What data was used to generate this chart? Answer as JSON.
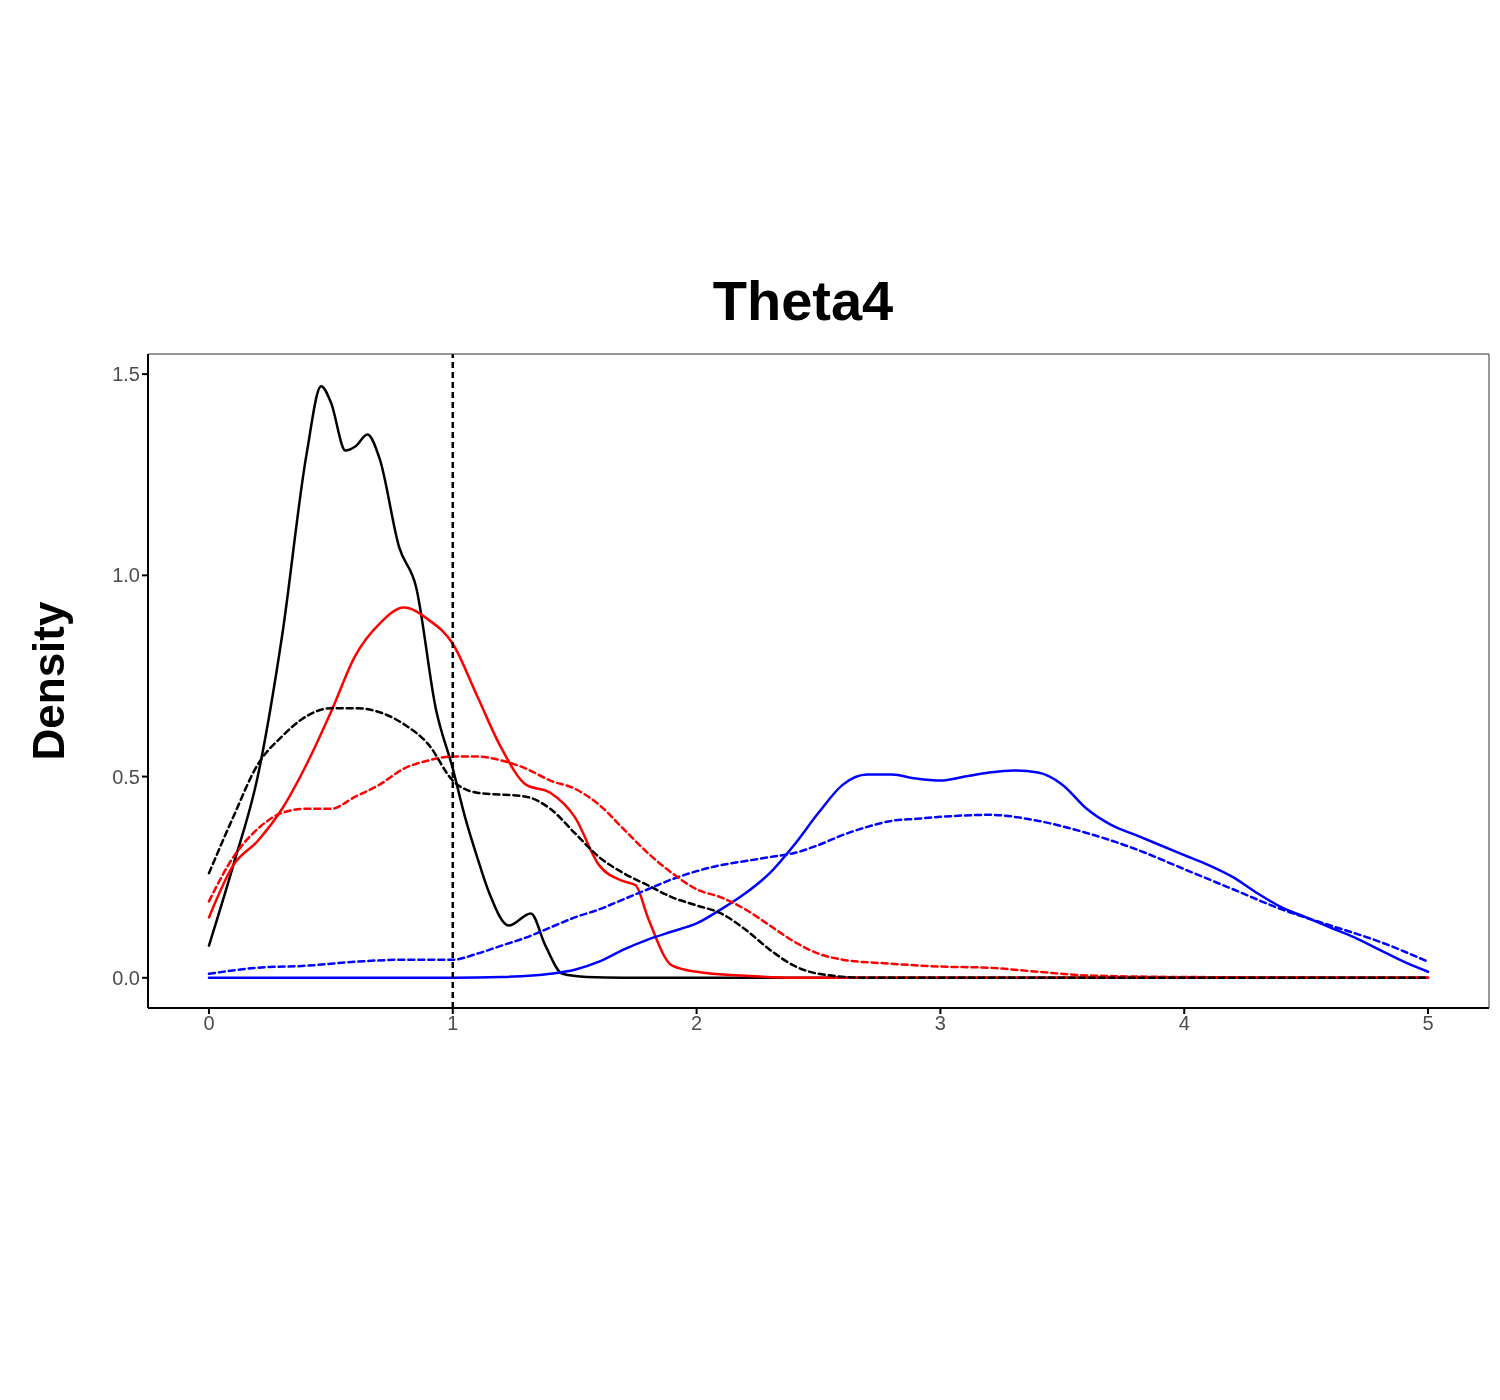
{
  "chart_data": {
    "type": "line",
    "title": "Theta4",
    "ylabel": "Density",
    "xlim": [
      -0.25,
      5.25
    ],
    "ylim": [
      -0.075,
      1.55
    ],
    "xticks": [
      0,
      1,
      2,
      3,
      4,
      5
    ],
    "yticks": [
      {
        "value": 0,
        "label": "0.0"
      },
      {
        "value": 0.5,
        "label": "0.5"
      },
      {
        "value": 1,
        "label": "1.0"
      },
      {
        "value": 1.5,
        "label": "1.5"
      }
    ],
    "marker": "none",
    "ref_lines": [
      {
        "axis": "x",
        "value": 1,
        "label": null,
        "color": "#000000",
        "line_style": "dashed"
      }
    ],
    "series": [
      {
        "color": "#000000",
        "line_style": "solid",
        "x": [
          0,
          0.1,
          0.2,
          0.3,
          0.4,
          0.46,
          0.5,
          0.56,
          0.6,
          0.65,
          0.7,
          0.78,
          0.85,
          0.93,
          1.0,
          1.05,
          1.1,
          1.15,
          1.23,
          1.32,
          1.38,
          1.45,
          1.55,
          1.7,
          2,
          3,
          4,
          5
        ],
        "values": [
          0.08,
          0.28,
          0.5,
          0.85,
          1.3,
          1.47,
          1.43,
          1.31,
          1.32,
          1.35,
          1.29,
          1.07,
          0.97,
          0.67,
          0.52,
          0.4,
          0.3,
          0.21,
          0.13,
          0.16,
          0.08,
          0.01,
          0.002,
          0,
          0,
          0,
          0,
          0
        ]
      },
      {
        "color": "#000000",
        "line_style": "dashed",
        "x": [
          0,
          0.1,
          0.2,
          0.3,
          0.4,
          0.5,
          0.6,
          0.7,
          0.8,
          0.9,
          1.0,
          1.1,
          1.3,
          1.4,
          1.5,
          1.6,
          1.7,
          1.8,
          1.9,
          2.0,
          2.1,
          2.2,
          2.3,
          2.4,
          2.5,
          2.7,
          5
        ],
        "values": [
          0.26,
          0.4,
          0.53,
          0.6,
          0.65,
          0.67,
          0.67,
          0.66,
          0.63,
          0.58,
          0.49,
          0.46,
          0.45,
          0.42,
          0.36,
          0.3,
          0.26,
          0.23,
          0.2,
          0.18,
          0.16,
          0.12,
          0.07,
          0.03,
          0.01,
          0,
          0
        ]
      },
      {
        "color": "#ff0000",
        "line_style": "solid",
        "x": [
          0,
          0.1,
          0.2,
          0.3,
          0.4,
          0.5,
          0.6,
          0.7,
          0.8,
          0.9,
          1.0,
          1.1,
          1.2,
          1.3,
          1.4,
          1.5,
          1.6,
          1.7,
          1.75,
          1.8,
          1.9,
          2.0,
          2.2,
          2.4,
          5
        ],
        "values": [
          0.15,
          0.28,
          0.34,
          0.42,
          0.53,
          0.66,
          0.8,
          0.88,
          0.92,
          0.89,
          0.83,
          0.7,
          0.57,
          0.48,
          0.46,
          0.4,
          0.28,
          0.24,
          0.23,
          0.15,
          0.03,
          0.015,
          0.005,
          0,
          0
        ]
      },
      {
        "color": "#ff0000",
        "line_style": "dashed",
        "x": [
          0,
          0.1,
          0.2,
          0.3,
          0.4,
          0.5,
          0.6,
          0.7,
          0.8,
          0.9,
          1.0,
          1.1,
          1.2,
          1.3,
          1.4,
          1.5,
          1.6,
          1.7,
          1.8,
          1.9,
          2.0,
          2.1,
          2.2,
          2.3,
          2.4,
          2.5,
          2.6,
          2.8,
          3.0,
          3.2,
          3.4,
          3.6,
          4,
          5
        ],
        "values": [
          0.19,
          0.3,
          0.37,
          0.41,
          0.42,
          0.42,
          0.45,
          0.48,
          0.52,
          0.54,
          0.55,
          0.55,
          0.54,
          0.52,
          0.49,
          0.47,
          0.43,
          0.37,
          0.31,
          0.26,
          0.22,
          0.2,
          0.17,
          0.13,
          0.09,
          0.06,
          0.045,
          0.035,
          0.028,
          0.025,
          0.015,
          0.006,
          0.002,
          0
        ]
      },
      {
        "color": "#0000ff",
        "line_style": "solid",
        "x": [
          0,
          1,
          1.2,
          1.4,
          1.5,
          1.6,
          1.7,
          1.8,
          1.9,
          2.0,
          2.1,
          2.2,
          2.3,
          2.4,
          2.5,
          2.6,
          2.7,
          2.8,
          2.9,
          3.0,
          3.1,
          3.2,
          3.3,
          3.4,
          3.5,
          3.6,
          3.7,
          3.8,
          3.9,
          4.0,
          4.1,
          4.2,
          4.3,
          4.4,
          4.5,
          4.6,
          4.7,
          4.8,
          4.9,
          5.0
        ],
        "values": [
          0,
          0,
          0.002,
          0.01,
          0.02,
          0.04,
          0.07,
          0.095,
          0.115,
          0.135,
          0.17,
          0.21,
          0.26,
          0.33,
          0.41,
          0.48,
          0.505,
          0.505,
          0.495,
          0.49,
          0.5,
          0.51,
          0.515,
          0.51,
          0.48,
          0.42,
          0.38,
          0.355,
          0.33,
          0.305,
          0.28,
          0.25,
          0.21,
          0.175,
          0.15,
          0.125,
          0.1,
          0.07,
          0.04,
          0.015
        ]
      },
      {
        "color": "#0000ff",
        "line_style": "dashed",
        "x": [
          0,
          0.2,
          0.4,
          0.6,
          0.8,
          1.0,
          1.1,
          1.2,
          1.3,
          1.4,
          1.5,
          1.6,
          1.7,
          1.8,
          1.9,
          2.0,
          2.1,
          2.2,
          2.3,
          2.4,
          2.5,
          2.6,
          2.7,
          2.8,
          2.9,
          3.0,
          3.2,
          3.4,
          3.6,
          3.8,
          4.0,
          4.2,
          4.4,
          4.6,
          4.8,
          5.0
        ],
        "values": [
          0.01,
          0.025,
          0.03,
          0.04,
          0.045,
          0.045,
          0.06,
          0.08,
          0.1,
          0.125,
          0.15,
          0.17,
          0.195,
          0.22,
          0.245,
          0.265,
          0.28,
          0.29,
          0.3,
          0.31,
          0.33,
          0.355,
          0.375,
          0.39,
          0.395,
          0.4,
          0.405,
          0.39,
          0.36,
          0.32,
          0.27,
          0.22,
          0.17,
          0.13,
          0.09,
          0.04
        ]
      }
    ]
  }
}
